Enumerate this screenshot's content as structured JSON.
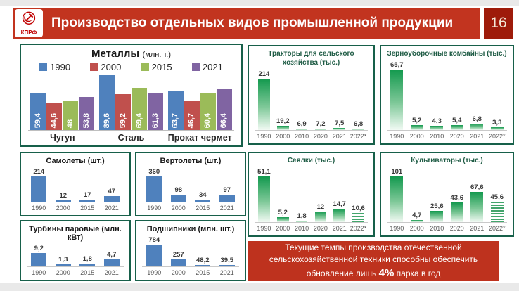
{
  "header": {
    "logo": "КПРФ",
    "title": "Производство отдельных видов промышленной продукции",
    "page_number": "16"
  },
  "colors": {
    "header_red": "#c2341f",
    "page_box_red": "#9e1b0a",
    "panel_border_green": "#17604a",
    "bar_blue": "#4f81bd",
    "bar_red": "#c0504d",
    "bar_olive": "#9bbb59",
    "bar_purple": "#8064a2",
    "green_gradient_top": "#13994e",
    "message_red": "#be321e"
  },
  "message": {
    "line1": "Текущие темпы производства отечественной",
    "line2": "сельскохозяйственной техники способны обеспечить",
    "line3_prefix": "обновление лишь ",
    "line3_highlight": "4%",
    "line3_suffix": " парка в год"
  },
  "chart_data": [
    {
      "id": "metals",
      "type": "bar",
      "grouped": true,
      "title": "Металлы",
      "unit": "(млн. т.)",
      "legend_position": "top",
      "categories": [
        "Чугун",
        "Сталь",
        "Прокат чермет"
      ],
      "series": [
        {
          "name": "1990",
          "color": "#4f81bd",
          "values": [
            59.4,
            89.6,
            63.7
          ],
          "labels": [
            "59,4",
            "89,6",
            "63,7"
          ]
        },
        {
          "name": "2000",
          "color": "#c0504d",
          "values": [
            44.6,
            59.2,
            46.7
          ],
          "labels": [
            "44,6",
            "59,2",
            "46,7"
          ]
        },
        {
          "name": "2015",
          "color": "#9bbb59",
          "values": [
            48,
            69.4,
            60.4
          ],
          "labels": [
            "48",
            "69,4",
            "60,4"
          ]
        },
        {
          "name": "2021",
          "color": "#8064a2",
          "values": [
            53.8,
            61.3,
            66.4
          ],
          "labels": [
            "53,8",
            "61,3",
            "66,4"
          ]
        }
      ],
      "ylim": [
        0,
        89.6
      ]
    },
    {
      "id": "tractors",
      "type": "bar",
      "style": "green",
      "title": "Тракторы для сельского хозяйства (тыс.)",
      "categories": [
        "1990",
        "2000",
        "2010",
        "2020",
        "2021",
        "2022*"
      ],
      "values": [
        214,
        19.2,
        6.9,
        7.2,
        7.5,
        6.8
      ],
      "labels": [
        "214",
        "19,2",
        "6,9",
        "7,2",
        "7,5",
        "6,8"
      ],
      "hatched_last": false
    },
    {
      "id": "combines",
      "type": "bar",
      "style": "green",
      "title": "Зерноуборочные комбайны (тыс.)",
      "categories": [
        "1990",
        "2000",
        "2010",
        "2020",
        "2021",
        "2022*"
      ],
      "values": [
        65.7,
        5.2,
        4.3,
        5.4,
        6.8,
        3.3
      ],
      "labels": [
        "65,7",
        "5,2",
        "4,3",
        "5,4",
        "6,8",
        "3,3"
      ],
      "hatched_last": false
    },
    {
      "id": "planes",
      "type": "bar",
      "style": "blue",
      "title": "Самолеты (шт.)",
      "categories": [
        "1990",
        "2000",
        "2015",
        "2021"
      ],
      "values": [
        214,
        12,
        17,
        47
      ],
      "labels": [
        "214",
        "12",
        "17",
        "47"
      ]
    },
    {
      "id": "helicopters",
      "type": "bar",
      "style": "blue",
      "title": "Вертолеты (шт.)",
      "categories": [
        "1990",
        "2000",
        "2015",
        "2021"
      ],
      "values": [
        360,
        98,
        34,
        97
      ],
      "labels": [
        "360",
        "98",
        "34",
        "97"
      ]
    },
    {
      "id": "seeders",
      "type": "bar",
      "style": "green",
      "title": "Сеялки (тыс.)",
      "categories": [
        "1990",
        "2000",
        "2010",
        "2020",
        "2021",
        "2022*"
      ],
      "values": [
        51.1,
        5.2,
        1.8,
        12,
        14.7,
        10.6
      ],
      "labels": [
        "51,1",
        "5,2",
        "1,8",
        "12",
        "14,7",
        "10,6"
      ],
      "hatched_last": true
    },
    {
      "id": "cultivators",
      "type": "bar",
      "style": "green",
      "title": "Культиваторы (тыс.)",
      "categories": [
        "1990",
        "2000",
        "2010",
        "2020",
        "2021",
        "2022*"
      ],
      "values": [
        101,
        4.7,
        25.6,
        43.6,
        67.6,
        45.6
      ],
      "labels": [
        "101",
        "4,7",
        "25,6",
        "43,6",
        "67,6",
        "45,6"
      ],
      "hatched_last": true
    },
    {
      "id": "turbines",
      "type": "bar",
      "style": "blue",
      "title": "Турбины паровые (млн. кВт)",
      "categories": [
        "1990",
        "2000",
        "2015",
        "2021"
      ],
      "values": [
        9.2,
        1.3,
        1.8,
        4.7
      ],
      "labels": [
        "9,2",
        "1,3",
        "1,8",
        "4,7"
      ]
    },
    {
      "id": "bearings",
      "type": "bar",
      "style": "blue",
      "title": "Подшипники (млн. шт.)",
      "categories": [
        "1990",
        "2000",
        "2015",
        "2021"
      ],
      "values": [
        784,
        257,
        48.2,
        39.5
      ],
      "labels": [
        "784",
        "257",
        "48,2",
        "39,5"
      ]
    }
  ]
}
